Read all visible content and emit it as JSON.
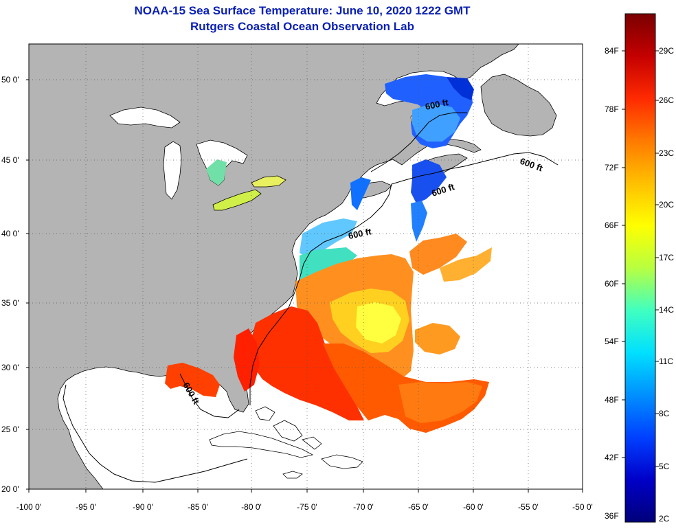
{
  "header": {
    "title": "NOAA-15 Sea Surface Temperature:  June 10, 2020 1222 GMT",
    "subtitle": "Rutgers Coastal Ocean Observation Lab"
  },
  "map": {
    "lat_labels": [
      "50 0'",
      "45 0'",
      "40 0'",
      "35 0'",
      "30 0'",
      "25 0'",
      "20 0'"
    ],
    "lon_labels": [
      "-100 0'",
      "-95 0'",
      "-90 0'",
      "-85 0'",
      "-80 0'",
      "-75 0'",
      "-70 0'",
      "-65 0'",
      "-60 0'",
      "-55 0'",
      "-50 0'"
    ],
    "contour_label": "600 ft",
    "colors": {
      "land": "#b4b4b4",
      "water": "#ffffff",
      "coast": "#000000"
    }
  },
  "colorbar": {
    "f_labels": [
      "84F",
      "78F",
      "72F",
      "66F",
      "60F",
      "54F",
      "48F",
      "42F",
      "36F"
    ],
    "c_labels": [
      "29C",
      "26C",
      "23C",
      "20C",
      "17C",
      "14C",
      "11C",
      "8C",
      "5C",
      "2C"
    ],
    "gradient": [
      "#7a0000",
      "#c40000",
      "#ff2a00",
      "#ff7a00",
      "#ffc000",
      "#ffff00",
      "#b8ff40",
      "#40ffc0",
      "#00e0ff",
      "#0090ff",
      "#0040ff",
      "#0000c8",
      "#00007a"
    ]
  }
}
